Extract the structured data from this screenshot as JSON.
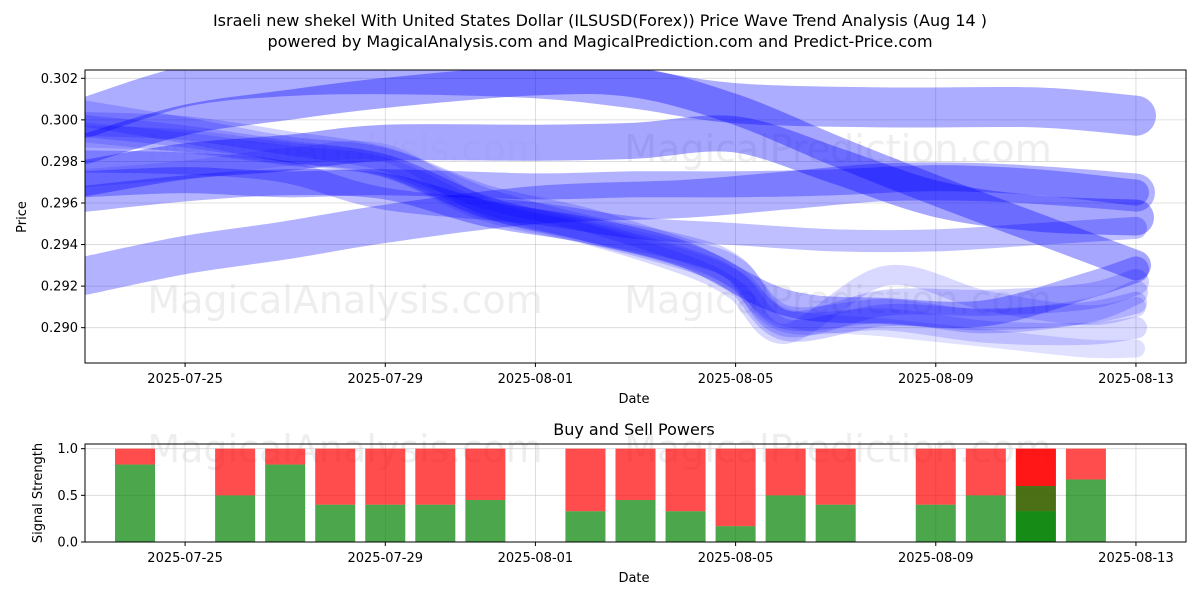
{
  "header": {
    "title_line1": "Israeli new shekel With United States Dollar (ILSUSD(Forex)) Price Wave Trend Analysis (Aug 14 )",
    "title_line2": "powered by MagicalAnalysis.com and MagicalPrediction.com and Predict-Price.com"
  },
  "watermarks": {
    "left": "MagicalAnalysis.com",
    "right": "MagicalPrediction.com"
  },
  "colors": {
    "wave": "#0000ff",
    "buy": "#008000",
    "sell": "#ff0000",
    "grid": "#b0b0b0"
  },
  "chart_data": [
    {
      "type": "line",
      "title": "",
      "xlabel": "Date",
      "ylabel": "Price",
      "x_ticks": [
        "2025-07-25",
        "2025-07-29",
        "2025-08-01",
        "2025-08-05",
        "2025-08-09",
        "2025-08-13"
      ],
      "y_ticks": [
        "0.290",
        "0.292",
        "0.294",
        "0.296",
        "0.298",
        "0.300",
        "0.302"
      ],
      "xlim": [
        "2025-07-23",
        "2025-08-14"
      ],
      "ylim": [
        0.2883,
        0.3024
      ],
      "grid": true,
      "series": [
        {
          "x": [
            "2025-07-23",
            "2025-07-25",
            "2025-07-27",
            "2025-07-29",
            "2025-08-01",
            "2025-08-03",
            "2025-08-05",
            "2025-08-08",
            "2025-08-11",
            "2025-08-13"
          ],
          "values": [
            0.3001,
            0.3016,
            0.3021,
            0.3022,
            0.302,
            0.3015,
            0.3008,
            0.3006,
            0.3006,
            0.3002
          ],
          "opacity": 0.32
        },
        {
          "x": [
            "2025-07-23",
            "2025-07-25",
            "2025-07-27",
            "2025-07-29",
            "2025-08-01",
            "2025-08-03",
            "2025-08-05",
            "2025-08-07",
            "2025-08-09",
            "2025-08-11",
            "2025-08-13"
          ],
          "values": [
            0.2986,
            0.3,
            0.3007,
            0.3013,
            0.3019,
            0.3018,
            0.3005,
            0.2985,
            0.2966,
            0.2948,
            0.293
          ],
          "opacity": 0.35
        },
        {
          "x": [
            "2025-07-23",
            "2025-07-25",
            "2025-07-27",
            "2025-07-29",
            "2025-08-01",
            "2025-08-03",
            "2025-08-05",
            "2025-08-07",
            "2025-08-09",
            "2025-08-11",
            "2025-08-13"
          ],
          "values": [
            0.2972,
            0.298,
            0.2984,
            0.2989,
            0.2989,
            0.299,
            0.2993,
            0.2978,
            0.2962,
            0.2955,
            0.2953
          ],
          "opacity": 0.35
        },
        {
          "x": [
            "2025-07-23",
            "2025-07-25",
            "2025-07-27",
            "2025-07-29",
            "2025-08-01",
            "2025-08-04",
            "2025-08-06",
            "2025-08-08",
            "2025-08-10",
            "2025-08-12",
            "2025-08-13"
          ],
          "values": [
            0.2925,
            0.2935,
            0.2942,
            0.295,
            0.2959,
            0.2962,
            0.2966,
            0.297,
            0.297,
            0.2967,
            0.2965
          ],
          "opacity": 0.3
        },
        {
          "x": [
            "2025-07-23",
            "2025-07-25",
            "2025-07-27",
            "2025-07-29",
            "2025-08-01",
            "2025-08-03",
            "2025-08-05",
            "2025-08-07",
            "2025-08-09",
            "2025-08-11",
            "2025-08-13"
          ],
          "values": [
            0.2969,
            0.2971,
            0.2969,
            0.297,
            0.2968,
            0.2969,
            0.2969,
            0.297,
            0.2972,
            0.297,
            0.2965
          ],
          "opacity": 0.3
        },
        {
          "x": [
            "2025-07-23",
            "2025-07-25",
            "2025-07-27",
            "2025-07-29",
            "2025-08-01",
            "2025-08-03",
            "2025-08-05",
            "2025-08-07",
            "2025-08-09",
            "2025-08-11",
            "2025-08-13"
          ],
          "values": [
            0.298,
            0.2979,
            0.2975,
            0.2962,
            0.2955,
            0.2948,
            0.2945,
            0.2942,
            0.2942,
            0.2945,
            0.2948
          ],
          "opacity": 0.25
        },
        {
          "x": [
            "2025-07-23",
            "2025-07-25",
            "2025-07-27",
            "2025-07-29",
            "2025-07-31",
            "2025-08-02",
            "2025-08-04",
            "2025-08-05",
            "2025-08-06",
            "2025-08-08",
            "2025-08-10",
            "2025-08-12",
            "2025-08-13"
          ],
          "values": [
            0.2998,
            0.2996,
            0.2989,
            0.2981,
            0.2963,
            0.2952,
            0.2937,
            0.2928,
            0.2905,
            0.2908,
            0.2903,
            0.2908,
            0.2917
          ],
          "opacity": 0.18
        },
        {
          "x": [
            "2025-07-23",
            "2025-07-25",
            "2025-07-27",
            "2025-07-29",
            "2025-07-31",
            "2025-08-02",
            "2025-08-04",
            "2025-08-05",
            "2025-08-06",
            "2025-08-08",
            "2025-08-10",
            "2025-08-12",
            "2025-08-13"
          ],
          "values": [
            0.3003,
            0.2995,
            0.2986,
            0.298,
            0.2961,
            0.2948,
            0.2938,
            0.2928,
            0.2902,
            0.2912,
            0.2912,
            0.2915,
            0.2922
          ],
          "opacity": 0.18
        },
        {
          "x": [
            "2025-07-23",
            "2025-07-25",
            "2025-07-27",
            "2025-07-29",
            "2025-07-31",
            "2025-08-02",
            "2025-08-04",
            "2025-08-05",
            "2025-08-06",
            "2025-08-08",
            "2025-08-10",
            "2025-08-12",
            "2025-08-13"
          ],
          "values": [
            0.2997,
            0.2992,
            0.2985,
            0.2978,
            0.2958,
            0.2946,
            0.2933,
            0.2922,
            0.2899,
            0.2906,
            0.2904,
            0.2907,
            0.2912
          ],
          "opacity": 0.18
        },
        {
          "x": [
            "2025-07-23",
            "2025-07-25",
            "2025-07-27",
            "2025-07-29",
            "2025-07-31",
            "2025-08-02",
            "2025-08-04",
            "2025-08-05",
            "2025-08-06",
            "2025-08-08",
            "2025-08-10",
            "2025-08-12",
            "2025-08-13"
          ],
          "values": [
            0.2994,
            0.2989,
            0.2983,
            0.2977,
            0.2956,
            0.2945,
            0.293,
            0.2918,
            0.2897,
            0.2925,
            0.2913,
            0.2906,
            0.291
          ],
          "opacity": 0.15
        },
        {
          "x": [
            "2025-07-23",
            "2025-07-25",
            "2025-07-27",
            "2025-07-29",
            "2025-07-31",
            "2025-08-02",
            "2025-08-04",
            "2025-08-05",
            "2025-08-06",
            "2025-08-08",
            "2025-08-10",
            "2025-08-12",
            "2025-08-13"
          ],
          "values": [
            0.2992,
            0.299,
            0.2984,
            0.2978,
            0.2958,
            0.2947,
            0.2935,
            0.2924,
            0.2903,
            0.2904,
            0.2898,
            0.2897,
            0.29
          ],
          "opacity": 0.15
        },
        {
          "x": [
            "2025-07-23",
            "2025-07-25",
            "2025-07-27",
            "2025-07-29",
            "2025-07-31",
            "2025-08-02",
            "2025-08-04",
            "2025-08-05",
            "2025-08-06",
            "2025-08-08",
            "2025-08-10",
            "2025-08-12",
            "2025-08-13"
          ],
          "values": [
            0.2972,
            0.2976,
            0.2982,
            0.2984,
            0.2958,
            0.2946,
            0.2933,
            0.2923,
            0.2905,
            0.29,
            0.2895,
            0.289,
            0.289
          ],
          "opacity": 0.12
        },
        {
          "x": [
            "2025-07-23",
            "2025-07-25",
            "2025-07-27",
            "2025-07-29",
            "2025-07-31",
            "2025-08-02",
            "2025-08-04",
            "2025-08-06",
            "2025-08-08",
            "2025-08-10",
            "2025-08-12",
            "2025-08-13"
          ],
          "values": [
            0.2962,
            0.2967,
            0.297,
            0.2968,
            0.2955,
            0.2947,
            0.2935,
            0.2912,
            0.2908,
            0.2907,
            0.292,
            0.2928
          ],
          "opacity": 0.3
        }
      ]
    },
    {
      "type": "bar",
      "title": "Buy and Sell Powers",
      "xlabel": "Date",
      "ylabel": "Signal Strength",
      "x_ticks": [
        "2025-07-25",
        "2025-07-29",
        "2025-08-01",
        "2025-08-05",
        "2025-08-09",
        "2025-08-13"
      ],
      "y_ticks": [
        "0.0",
        "0.5",
        "1.0"
      ],
      "xlim": [
        "2025-07-23",
        "2025-08-14"
      ],
      "ylim": [
        0,
        1.05
      ],
      "grid": true,
      "categories": [
        "2025-07-24",
        "2025-07-26",
        "2025-07-27",
        "2025-07-28",
        "2025-07-29",
        "2025-07-30",
        "2025-07-31",
        "2025-08-02",
        "2025-08-03",
        "2025-08-04",
        "2025-08-05",
        "2025-08-06",
        "2025-08-07",
        "2025-08-09",
        "2025-08-10",
        "2025-08-11",
        "2025-08-12"
      ],
      "series": [
        {
          "name": "Buy",
          "values": [
            0.83,
            0.5,
            0.83,
            0.4,
            0.4,
            0.4,
            0.45,
            0.33,
            0.45,
            0.33,
            0.17,
            0.5,
            0.4,
            0.4,
            0.5,
            0.33,
            0.67
          ]
        },
        {
          "name": "Sell",
          "values": [
            0.17,
            0.5,
            0.17,
            0.6,
            0.6,
            0.6,
            0.55,
            0.67,
            0.55,
            0.67,
            0.83,
            0.5,
            0.6,
            0.6,
            0.5,
            0.67,
            0.33
          ]
        }
      ],
      "overlay": {
        "category": "2025-08-11",
        "buy": 0.6,
        "sell": 0.4
      }
    }
  ]
}
